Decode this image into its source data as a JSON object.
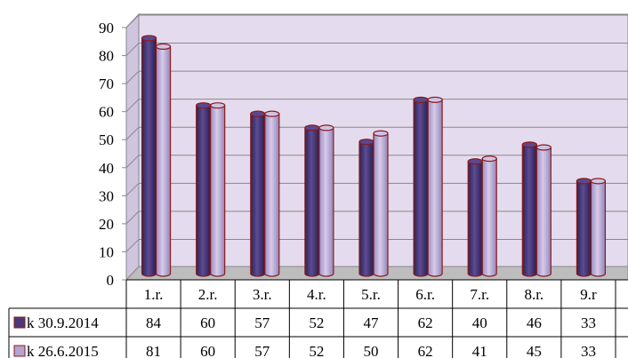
{
  "chart_data": {
    "type": "bar",
    "title": "",
    "xlabel": "",
    "ylabel": "",
    "ylim": [
      0,
      90
    ],
    "y_ticks": [
      "0",
      "10",
      "20",
      "30",
      "40",
      "50",
      "60",
      "70",
      "80",
      "90"
    ],
    "grid": true,
    "legend": "data-table-left",
    "categories": [
      "1.r.",
      "2.r.",
      "3.r.",
      "4.r.",
      "5.r.",
      "6.r.",
      "7.r.",
      "8.r.",
      "9.r"
    ],
    "series": [
      {
        "name": "k 30.9.2014",
        "color": "#4a3a78",
        "values": [
          84,
          60,
          57,
          52,
          47,
          62,
          40,
          46,
          33
        ]
      },
      {
        "name": "k 26.6.2015",
        "color": "#b3a4d2",
        "values": [
          81,
          60,
          57,
          52,
          50,
          62,
          41,
          45,
          33
        ]
      }
    ],
    "colors": {
      "wall": "#e4dcee",
      "floor": "#bdbdbd",
      "outline": "#8b1a1a",
      "grid": "#888888"
    }
  }
}
